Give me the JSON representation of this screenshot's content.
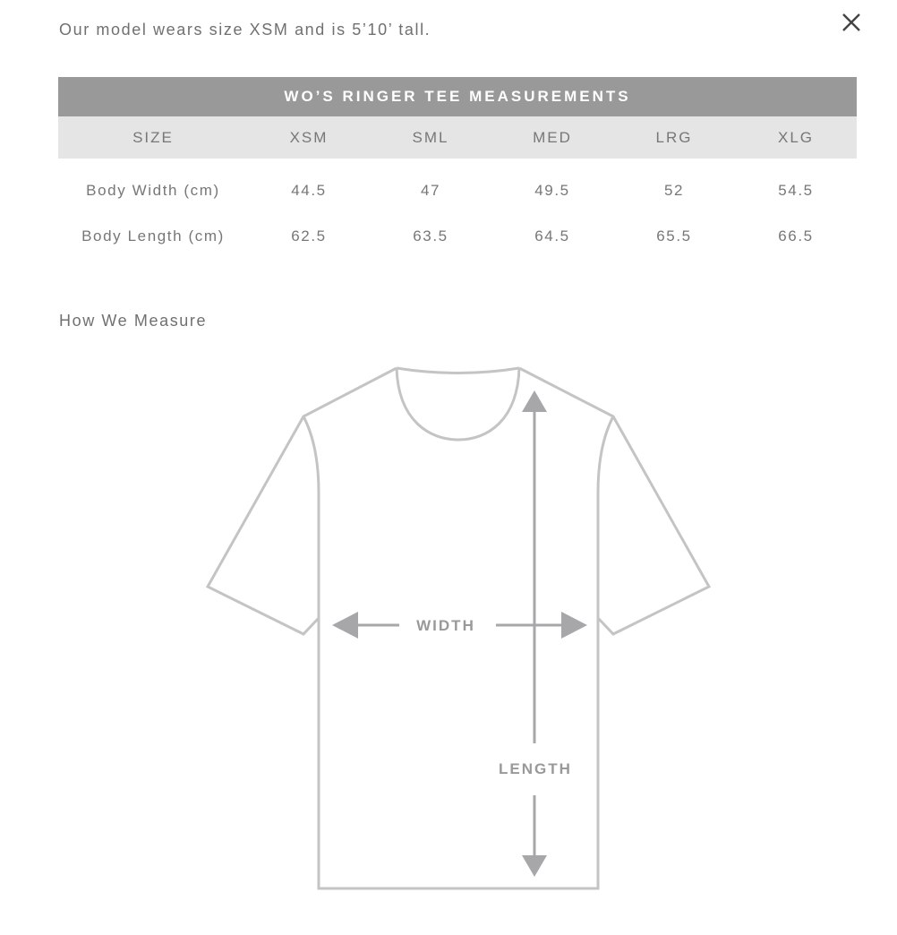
{
  "note": "Our model wears size XSM and is 5’10’ tall.",
  "close_icon": "close-icon",
  "table": {
    "title": "WO’S RINGER TEE MEASUREMENTS",
    "header": [
      "SIZE",
      "XSM",
      "SML",
      "MED",
      "LRG",
      "XLG"
    ],
    "rows": [
      [
        "Body Width (cm)",
        "44.5",
        "47",
        "49.5",
        "52",
        "54.5"
      ],
      [
        "Body Length (cm)",
        "62.5",
        "63.5",
        "64.5",
        "65.5",
        "66.5"
      ]
    ]
  },
  "how_we_measure": "How We Measure",
  "diagram": {
    "width_label": "WIDTH",
    "length_label": "LENGTH"
  },
  "colors": {
    "header_bg": "#999999",
    "subheader_bg": "#e5e5e5",
    "outline": "#c4c4c4",
    "arrow": "#a7a7aa"
  }
}
